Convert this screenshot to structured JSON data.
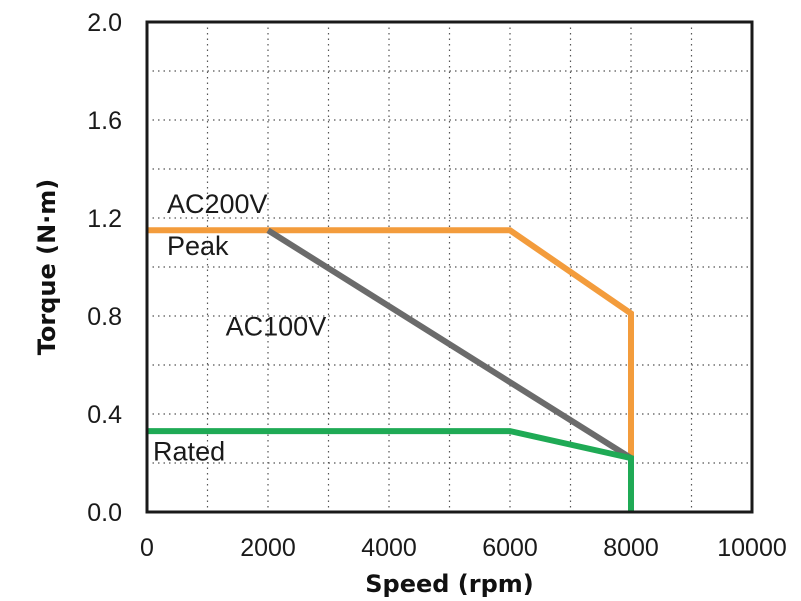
{
  "chart_data": {
    "type": "line",
    "xlabel": "Speed (rpm)",
    "ylabel": "Torque (N·m)",
    "xlim": [
      0,
      10000
    ],
    "ylim": [
      0,
      2.0
    ],
    "x_ticks": [
      0,
      2000,
      4000,
      6000,
      8000,
      10000
    ],
    "x_tick_labels": [
      "0",
      "2000",
      "4000",
      "6000",
      "8000",
      "10000"
    ],
    "y_ticks": [
      0,
      0.4,
      0.8,
      1.2,
      1.6,
      2.0
    ],
    "y_tick_labels": [
      "0.0",
      "0.4",
      "0.8",
      "1.2",
      "1.6",
      "2.0"
    ],
    "x_minor_step": 1000,
    "y_minor_step": 0.2,
    "grid": true,
    "series": [
      {
        "color": "#f39c3c",
        "points": [
          [
            0,
            1.15
          ],
          [
            6000,
            1.15
          ],
          [
            8000,
            0.81
          ],
          [
            8000,
            0.22
          ]
        ]
      },
      {
        "color": "#6b6b6b",
        "points": [
          [
            2000,
            1.15
          ],
          [
            8000,
            0.22
          ]
        ]
      },
      {
        "color": "#1faa55",
        "points": [
          [
            0,
            0.33
          ],
          [
            6000,
            0.33
          ],
          [
            8000,
            0.22
          ],
          [
            8000,
            0
          ]
        ]
      }
    ],
    "annotations": [
      {
        "text": "AC200V",
        "x": 330,
        "y": 1.22
      },
      {
        "text": "Peak",
        "x": 330,
        "y": 1.05
      },
      {
        "text": "AC100V",
        "x": 1300,
        "y": 0.72
      },
      {
        "text": "Rated",
        "x": 100,
        "y": 0.21
      }
    ]
  }
}
